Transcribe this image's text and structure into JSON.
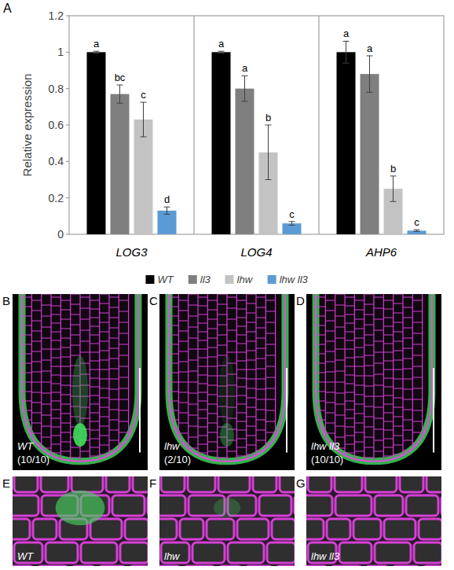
{
  "chart_data": {
    "type": "bar",
    "panel_label": "A",
    "y_label": "Relative expression",
    "categories": [
      "LOG3",
      "LOG4",
      "AHP6"
    ],
    "series": [
      {
        "name": "WT",
        "color": "#000000",
        "values": [
          1.0,
          1.0,
          1.0
        ],
        "errors": [
          0.005,
          0.005,
          0.06
        ],
        "annotations": [
          "a",
          "a",
          "a"
        ]
      },
      {
        "name": "ll3",
        "color": "#7f7f7f",
        "values": [
          0.77,
          0.8,
          0.88
        ],
        "errors": [
          0.05,
          0.07,
          0.1
        ],
        "annotations": [
          "bc",
          "a",
          "a"
        ]
      },
      {
        "name": "lhw",
        "color": "#c3c3c3",
        "values": [
          0.63,
          0.45,
          0.25
        ],
        "errors": [
          0.095,
          0.15,
          0.07
        ],
        "annotations": [
          "c",
          "b",
          "b"
        ]
      },
      {
        "name": "lhw ll3",
        "color": "#5b9bd5",
        "values": [
          0.13,
          0.06,
          0.02
        ],
        "errors": [
          0.02,
          0.01,
          0.005
        ],
        "annotations": [
          "d",
          "c",
          "c"
        ]
      }
    ],
    "ylim": [
      0,
      1.2
    ],
    "yticks": [
      0,
      0.2,
      0.4,
      0.6,
      0.8,
      1,
      1.2
    ],
    "grid": false,
    "legend": "bottom"
  },
  "images": [
    {
      "panel": "B",
      "label": "WT",
      "count": "(10/10)"
    },
    {
      "panel": "C",
      "label": "lhw",
      "count": "(2/10)"
    },
    {
      "panel": "D",
      "label": "lhw ll3",
      "count": "(10/10)"
    },
    {
      "panel": "E",
      "label": "WT"
    },
    {
      "panel": "F",
      "label": "lhw"
    },
    {
      "panel": "G",
      "label": "lhw ll3"
    }
  ]
}
